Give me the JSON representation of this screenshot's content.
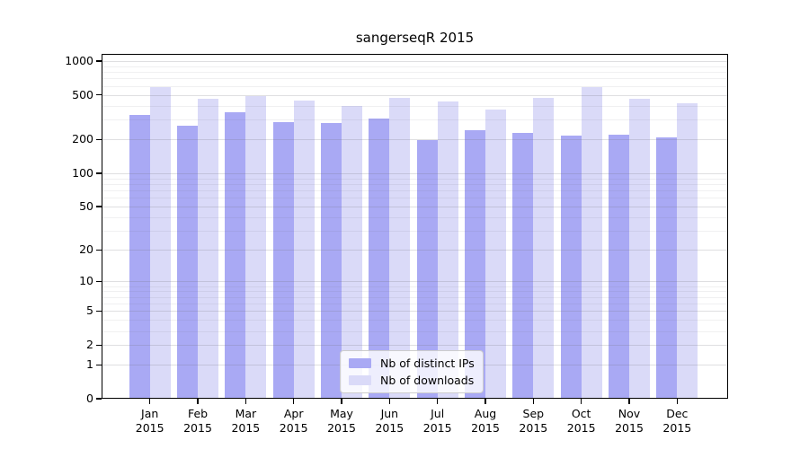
{
  "title": "sangerseqR 2015",
  "chart_data": {
    "type": "bar",
    "title": "sangerseqR 2015",
    "categories": [
      "Jan",
      "Feb",
      "Mar",
      "Apr",
      "May",
      "Jun",
      "Jul",
      "Aug",
      "Sep",
      "Oct",
      "Nov",
      "Dec"
    ],
    "x_tick_second_line": "2015",
    "series": [
      {
        "name": "Nb of distinct IPs",
        "color": "#a9a9f4",
        "values": [
          334,
          266,
          351,
          288,
          283,
          310,
          198,
          241,
          231,
          218,
          220,
          210
        ]
      },
      {
        "name": "Nb of downloads",
        "color": "#dadaf8",
        "values": [
          582,
          463,
          489,
          444,
          397,
          469,
          438,
          368,
          471,
          584,
          465,
          424
        ]
      }
    ],
    "y_scale": "log1p",
    "ylim": [
      0,
      1000
    ],
    "y_ticks": [
      0,
      1,
      2,
      5,
      10,
      20,
      50,
      100,
      200,
      500,
      1000
    ],
    "y_minor_gridlines": [
      3,
      4,
      6,
      7,
      8,
      9,
      30,
      40,
      60,
      70,
      80,
      90,
      300,
      400,
      600,
      700,
      800,
      900
    ],
    "grid": true,
    "legend_position": "lower center",
    "colors": {
      "distinct_ips_bar": "#a9a9f4",
      "downloads_bar": "#dadaf8",
      "axis": "#000000",
      "major_grid": "#e2e2e5",
      "minor_grid": "#f0f0f2"
    }
  }
}
